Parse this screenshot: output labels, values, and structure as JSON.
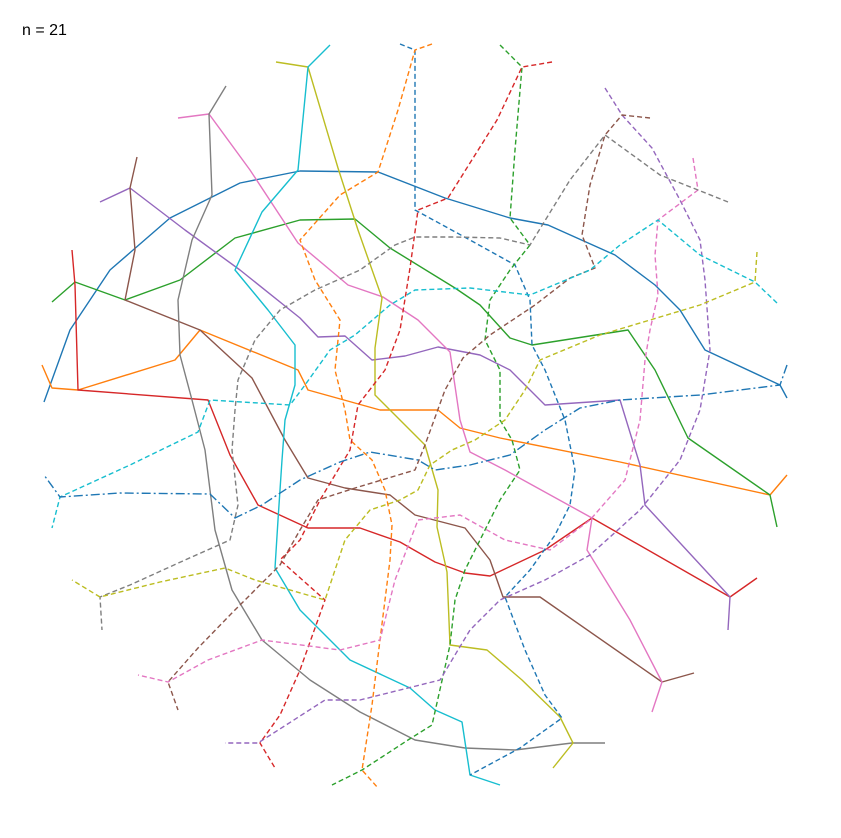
{
  "label": "n = 21",
  "palette": {
    "blue": "#1f77b4",
    "orange": "#ff7f0e",
    "green": "#2ca02c",
    "red": "#d62728",
    "purple": "#9467bd",
    "brown": "#8c564b",
    "pink": "#e377c2",
    "gray": "#7f7f7f",
    "olive": "#bcbd22",
    "cyan": "#17becf"
  },
  "line_styles": [
    "solid",
    "dashed",
    "dash-dot"
  ]
}
